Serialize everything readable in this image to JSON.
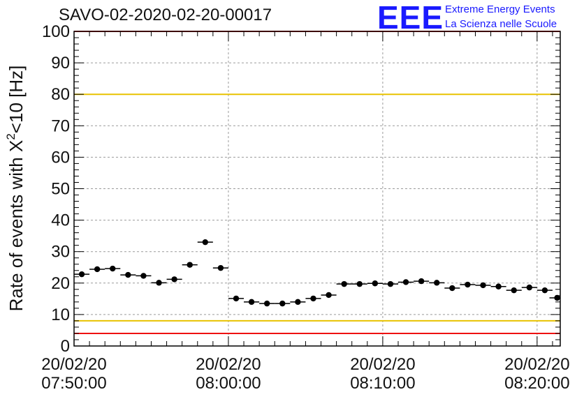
{
  "chart_data": {
    "type": "scatter",
    "title": "SAVO-02-2020-02-20-00017",
    "ylabel_prefix": "Rate of events with X",
    "ylabel_sup": "2",
    "ylabel_suffix": "<10 [Hz]",
    "ylim": [
      0,
      100
    ],
    "yticks": [
      0,
      10,
      20,
      30,
      40,
      50,
      60,
      70,
      80,
      90,
      100
    ],
    "xlim_minutes": [
      0,
      31.5
    ],
    "xticks": [
      {
        "min": 0,
        "date": "20/02/20",
        "time": "07:50:00"
      },
      {
        "min": 10,
        "date": "20/02/20",
        "time": "08:00:00"
      },
      {
        "min": 20,
        "date": "20/02/20",
        "time": "08:10:00"
      },
      {
        "min": 30,
        "date": "20/02/20",
        "time": "08:20:00"
      }
    ],
    "grid": true,
    "bin_width_minutes": 1,
    "points": [
      {
        "x": 0.5,
        "y": 22.8
      },
      {
        "x": 1.5,
        "y": 24.4
      },
      {
        "x": 2.5,
        "y": 24.6
      },
      {
        "x": 3.5,
        "y": 22.6
      },
      {
        "x": 4.5,
        "y": 22.3
      },
      {
        "x": 5.5,
        "y": 20.1
      },
      {
        "x": 6.5,
        "y": 21.2
      },
      {
        "x": 7.5,
        "y": 25.8
      },
      {
        "x": 8.5,
        "y": 33.0
      },
      {
        "x": 9.5,
        "y": 24.8
      },
      {
        "x": 10.5,
        "y": 15.1
      },
      {
        "x": 11.5,
        "y": 14.0
      },
      {
        "x": 12.5,
        "y": 13.5
      },
      {
        "x": 13.5,
        "y": 13.5
      },
      {
        "x": 14.5,
        "y": 14.0
      },
      {
        "x": 15.5,
        "y": 15.1
      },
      {
        "x": 16.5,
        "y": 16.2
      },
      {
        "x": 17.5,
        "y": 19.7
      },
      {
        "x": 18.5,
        "y": 19.7
      },
      {
        "x": 19.5,
        "y": 19.9
      },
      {
        "x": 20.5,
        "y": 19.7
      },
      {
        "x": 21.5,
        "y": 20.3
      },
      {
        "x": 22.5,
        "y": 20.6
      },
      {
        "x": 23.5,
        "y": 20.1
      },
      {
        "x": 24.5,
        "y": 18.4
      },
      {
        "x": 25.5,
        "y": 19.5
      },
      {
        "x": 26.5,
        "y": 19.3
      },
      {
        "x": 27.5,
        "y": 18.9
      },
      {
        "x": 28.5,
        "y": 17.7
      },
      {
        "x": 29.5,
        "y": 18.6
      },
      {
        "x": 30.5,
        "y": 17.7
      },
      {
        "x": 31.3,
        "y": 15.3
      }
    ],
    "reference_lines": [
      {
        "y": 100,
        "color": "#ee1111"
      },
      {
        "y": 80,
        "color": "#e8c200"
      },
      {
        "y": 8,
        "color": "#e8c200"
      },
      {
        "y": 4,
        "color": "#ee1111"
      }
    ],
    "colors": {
      "points": "#000000",
      "grid": "#9a9a9a",
      "axis": "#000000"
    }
  },
  "logo": {
    "mark": "EEE",
    "line1": "Extreme Energy Events",
    "line2": "La Scienza nelle Scuole",
    "color": "#1a1aff"
  }
}
